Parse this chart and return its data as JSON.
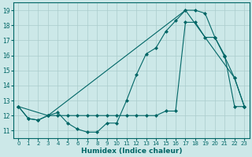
{
  "xlabel": "Humidex (Indice chaleur)",
  "x_ticks": [
    0,
    1,
    2,
    3,
    4,
    5,
    6,
    7,
    8,
    9,
    10,
    11,
    12,
    13,
    14,
    15,
    16,
    17,
    18,
    19,
    20,
    21,
    22,
    23
  ],
  "y_ticks": [
    11,
    12,
    13,
    14,
    15,
    16,
    17,
    18,
    19
  ],
  "xlim": [
    -0.5,
    23.5
  ],
  "ylim": [
    10.5,
    19.5
  ],
  "bg_color": "#cce8e8",
  "grid_color": "#aacccc",
  "line_color": "#006666",
  "series1_x": [
    0,
    1,
    2,
    3,
    4,
    5,
    6,
    7,
    8,
    9,
    10,
    11,
    12,
    13,
    14,
    15,
    16,
    17,
    18,
    19,
    20,
    21,
    22,
    23
  ],
  "series1_y": [
    12.6,
    11.8,
    11.7,
    12.0,
    12.2,
    11.5,
    11.1,
    10.9,
    10.9,
    11.5,
    11.5,
    13.0,
    14.7,
    16.1,
    16.5,
    17.6,
    18.3,
    19.0,
    19.0,
    18.8,
    17.2,
    15.9,
    14.5,
    12.6
  ],
  "series2_x": [
    0,
    1,
    2,
    3,
    4,
    5,
    6,
    7,
    8,
    9,
    10,
    11,
    12,
    13,
    14,
    15,
    16,
    17,
    18,
    19,
    20,
    21,
    22,
    23
  ],
  "series2_y": [
    12.6,
    11.8,
    11.7,
    12.0,
    12.0,
    12.0,
    12.0,
    12.0,
    12.0,
    12.0,
    12.0,
    12.0,
    12.0,
    12.0,
    12.0,
    12.3,
    12.3,
    18.2,
    18.2,
    17.2,
    17.2,
    16.0,
    12.6,
    12.6
  ],
  "series3_x": [
    0,
    3,
    17,
    22,
    23
  ],
  "series3_y": [
    12.6,
    12.0,
    19.0,
    14.5,
    12.6
  ]
}
